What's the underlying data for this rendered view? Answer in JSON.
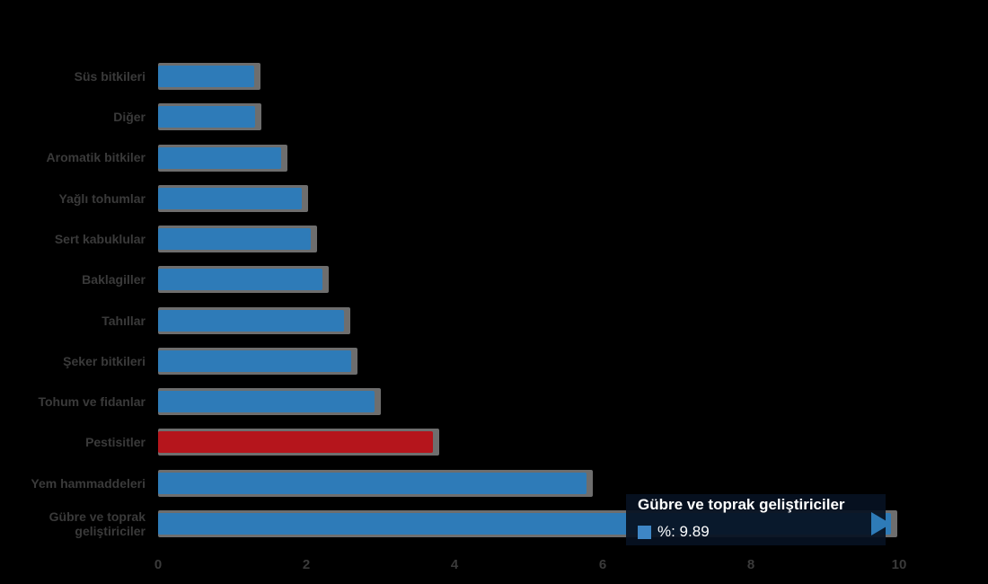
{
  "chart_data": {
    "type": "bar",
    "orientation": "horizontal",
    "title": "",
    "xlabel": "",
    "ylabel": "",
    "series_name": "Gübre ve toprak geliştiriciler",
    "categories": [
      "Süs bitkileri",
      "Diğer",
      "Aromatik bitkiler",
      "Yağlı tohumlar",
      "Sert kabuklular",
      "Baklagiller",
      "Tahıllar",
      "Şeker bitkileri",
      "Tohum ve fidanlar",
      "Pestisitler",
      "Yem hammaddeleri",
      "Gübre ve toprak geliştiriciler"
    ],
    "values": [
      1.3,
      1.31,
      1.66,
      1.94,
      2.06,
      2.22,
      2.51,
      2.61,
      2.92,
      3.71,
      5.78,
      9.89
    ],
    "highlight_index": 9,
    "bar_color": "#2e7bb8",
    "highlight_color": "#b5151c",
    "shadow_color": "#6e6e6e",
    "label_color": "#3a3a3a",
    "background_color": "#000000",
    "xlim": [
      0,
      10
    ],
    "x_ticks": [
      "0",
      "2",
      "4",
      "6",
      "8",
      "10"
    ],
    "grid": "off",
    "legend_position": "none"
  },
  "tooltip": {
    "title": "Gübre ve toprak geliştiriciler",
    "value_label": "%: 9.89",
    "marker_color": "#3e86c5"
  }
}
